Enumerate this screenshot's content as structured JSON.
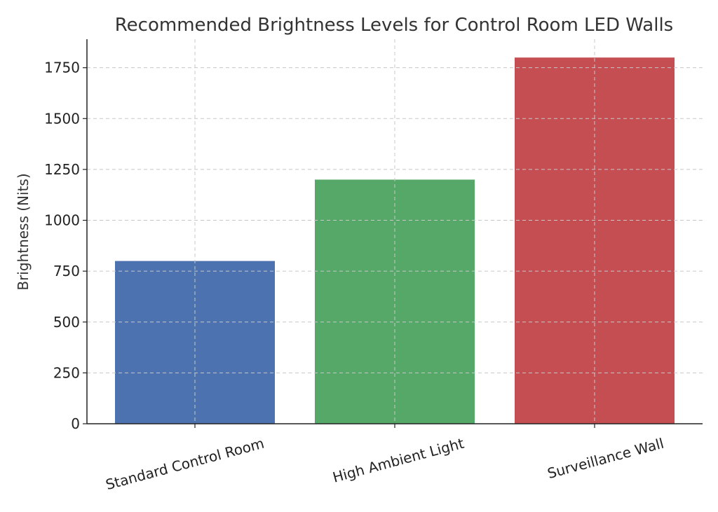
{
  "chart_data": {
    "type": "bar",
    "title": "Recommended Brightness Levels for Control Room LED Walls",
    "xlabel": "",
    "ylabel": "Brightness (Nits)",
    "categories": [
      "Standard Control Room",
      "High Ambient Light",
      "Surveillance Wall"
    ],
    "values": [
      800,
      1200,
      1800
    ],
    "colors": [
      "#4c72b0",
      "#55a868",
      "#c44e52"
    ],
    "ylim": [
      0,
      1890
    ],
    "yticks": [
      0,
      250,
      500,
      750,
      1000,
      1250,
      1500,
      1750
    ],
    "grid": true,
    "legend": "none"
  }
}
